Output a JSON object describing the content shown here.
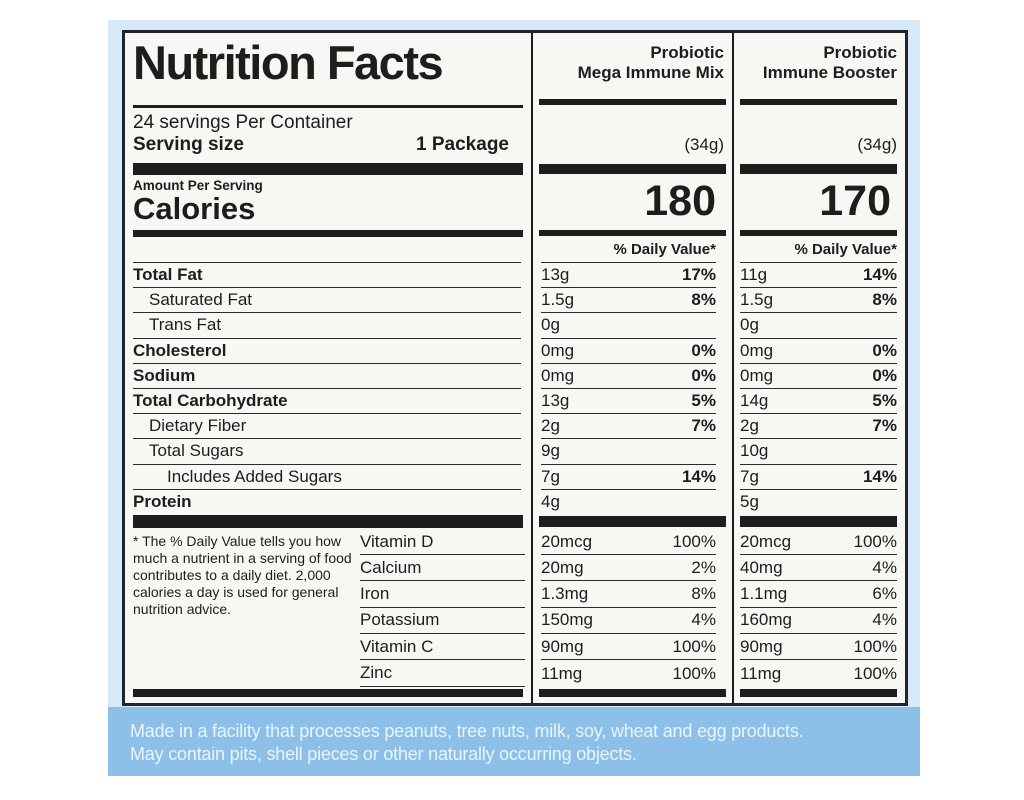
{
  "label": {
    "title": "Nutrition Facts",
    "servings_per_container": "24 servings Per Container",
    "serving_size_label": "Serving size",
    "serving_size_value": "1 Package",
    "amount_per_serving": "Amount Per Serving",
    "calories_label": "Calories",
    "daily_value_header": "% Daily Value*",
    "footnote": "* The % Daily Value tells you how  much a nutrient in a serving of food contributes to a daily diet. 2,000 calories a day is used for general nutrition advice."
  },
  "products": [
    {
      "line1": "Probiotic",
      "line2": "Mega Immune Mix",
      "weight": "(34g)",
      "calories": "180"
    },
    {
      "line1": "Probiotic",
      "line2": "Immune Booster",
      "weight": "(34g)",
      "calories": "170"
    }
  ],
  "nutrients": [
    {
      "name": "Total Fat",
      "p1": {
        "amount": "13g",
        "dv": "17%"
      },
      "p2": {
        "amount": "11g",
        "dv": "14%"
      }
    },
    {
      "name": "Saturated Fat",
      "p1": {
        "amount": "1.5g",
        "dv": "8%"
      },
      "p2": {
        "amount": "1.5g",
        "dv": "8%"
      }
    },
    {
      "name": "Trans Fat",
      "p1": {
        "amount": "0g",
        "dv": ""
      },
      "p2": {
        "amount": "0g",
        "dv": ""
      }
    },
    {
      "name": "Cholesterol",
      "p1": {
        "amount": "0mg",
        "dv": "0%"
      },
      "p2": {
        "amount": "0mg",
        "dv": "0%"
      }
    },
    {
      "name": "Sodium",
      "p1": {
        "amount": "0mg",
        "dv": "0%"
      },
      "p2": {
        "amount": "0mg",
        "dv": "0%"
      }
    },
    {
      "name": "Total Carbohydrate",
      "p1": {
        "amount": "13g",
        "dv": "5%"
      },
      "p2": {
        "amount": "14g",
        "dv": "5%"
      }
    },
    {
      "name": "Dietary Fiber",
      "p1": {
        "amount": "2g",
        "dv": "7%"
      },
      "p2": {
        "amount": "2g",
        "dv": "7%"
      }
    },
    {
      "name": "Total Sugars",
      "p1": {
        "amount": "9g",
        "dv": ""
      },
      "p2": {
        "amount": "10g",
        "dv": ""
      }
    },
    {
      "name": "Includes Added Sugars",
      "p1": {
        "amount": "7g",
        "dv": "14%"
      },
      "p2": {
        "amount": "7g",
        "dv": "14%"
      }
    },
    {
      "name": "Protein",
      "p1": {
        "amount": "4g",
        "dv": ""
      },
      "p2": {
        "amount": "5g",
        "dv": ""
      }
    }
  ],
  "vitamins": [
    {
      "name": "Vitamin D",
      "p1": {
        "amount": "20mcg",
        "dv": "100%"
      },
      "p2": {
        "amount": "20mcg",
        "dv": "100%"
      }
    },
    {
      "name": "Calcium",
      "p1": {
        "amount": "20mg",
        "dv": "2%"
      },
      "p2": {
        "amount": "40mg",
        "dv": "4%"
      }
    },
    {
      "name": "Iron",
      "p1": {
        "amount": "1.3mg",
        "dv": "8%"
      },
      "p2": {
        "amount": "1.1mg",
        "dv": "6%"
      }
    },
    {
      "name": "Potassium",
      "p1": {
        "amount": "150mg",
        "dv": "4%"
      },
      "p2": {
        "amount": "160mg",
        "dv": "4%"
      }
    },
    {
      "name": "Vitamin C",
      "p1": {
        "amount": "90mg",
        "dv": "100%"
      },
      "p2": {
        "amount": "90mg",
        "dv": "100%"
      }
    },
    {
      "name": "Zinc",
      "p1": {
        "amount": "11mg",
        "dv": "100%"
      },
      "p2": {
        "amount": "11mg",
        "dv": "100%"
      }
    }
  ],
  "footer": {
    "line1": "Made in a facility that processes peanuts, tree nuts, milk, soy, wheat and egg products.",
    "line2": "May contain pits, shell pieces or other naturally occurring objects."
  },
  "colors": {
    "package_light_blue": "#d7e9f7",
    "footer_band_blue": "#8cc0e9",
    "label_background": "#f7f7f4",
    "ink": "#1d1d1d",
    "footer_text": "#e9f4fc"
  }
}
